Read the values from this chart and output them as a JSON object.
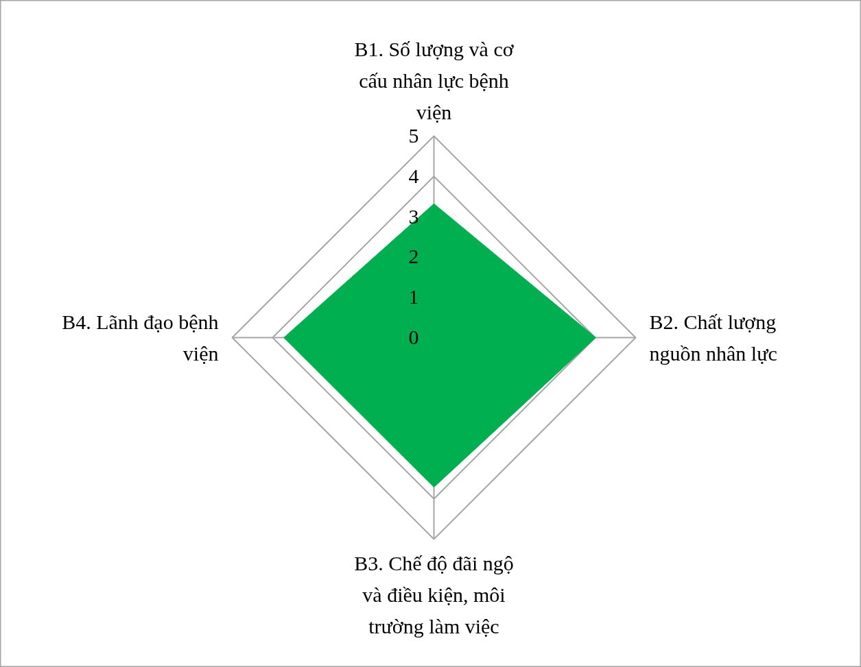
{
  "chart_data": {
    "type": "radar",
    "categories": [
      "B1. Số lượng và cơ cấu nhân lực bệnh viện",
      "B2. Chất lượng nguồn nhân lực",
      "B3. Chế độ đãi ngộ và điều kiện, môi trường làm việc",
      "B4. Lãnh đạo bệnh viện"
    ],
    "series": [
      {
        "color": "#00b050",
        "values": [
          3.32,
          4.01,
          3.71,
          3.72
        ]
      }
    ],
    "ylim": [
      0,
      5
    ],
    "yticks": [
      0,
      1,
      2,
      3,
      4,
      5
    ],
    "grid": true
  }
}
